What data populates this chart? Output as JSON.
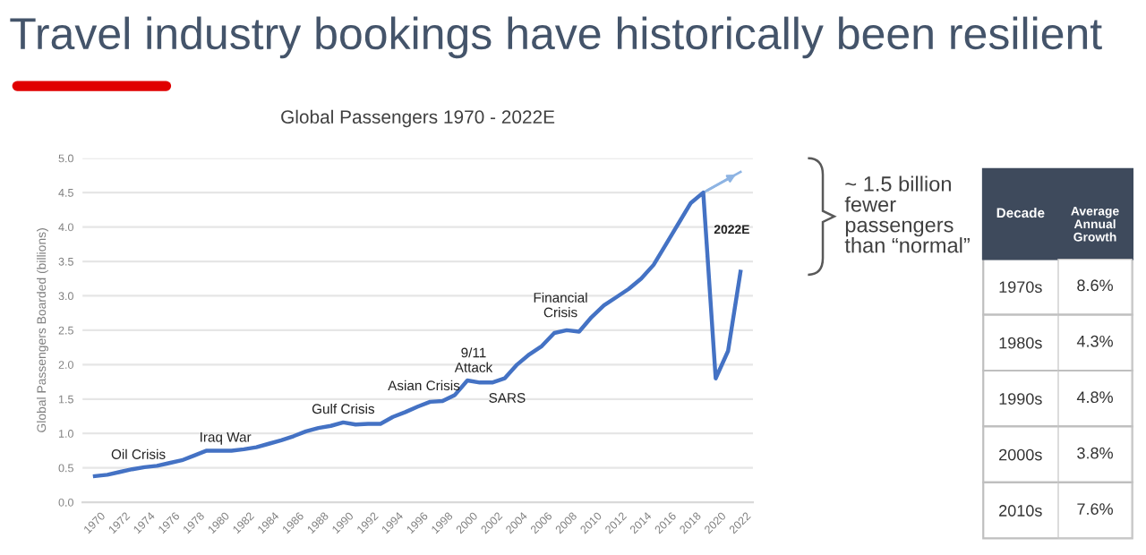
{
  "chart_data": [
    {
      "type": "line",
      "title": "Travel industry bookings have historically been resilient",
      "subtitle": "Global Passengers 1970 - 2022E",
      "ylabel": "Global Passengers Boarded (billions)",
      "x": [
        1970,
        1971,
        1972,
        1973,
        1974,
        1975,
        1976,
        1977,
        1978,
        1979,
        1980,
        1981,
        1982,
        1983,
        1984,
        1985,
        1986,
        1987,
        1988,
        1989,
        1990,
        1991,
        1992,
        1993,
        1994,
        1995,
        1996,
        1997,
        1998,
        1999,
        2000,
        2001,
        2002,
        2003,
        2004,
        2005,
        2006,
        2007,
        2008,
        2009,
        2010,
        2011,
        2012,
        2013,
        2014,
        2015,
        2016,
        2017,
        2018,
        2019,
        2020,
        2021,
        2022
      ],
      "series": [
        {
          "type": "line",
          "color": "#4472c4",
          "values": [
            0.38,
            0.4,
            0.44,
            0.48,
            0.51,
            0.53,
            0.57,
            0.61,
            0.68,
            0.75,
            0.75,
            0.75,
            0.77,
            0.8,
            0.85,
            0.9,
            0.96,
            1.03,
            1.08,
            1.11,
            1.16,
            1.13,
            1.14,
            1.14,
            1.24,
            1.31,
            1.39,
            1.46,
            1.47,
            1.56,
            1.77,
            1.74,
            1.74,
            1.8,
            2.0,
            2.15,
            2.27,
            2.46,
            2.5,
            2.48,
            2.69,
            2.86,
            2.98,
            3.1,
            3.25,
            3.45,
            3.75,
            4.05,
            4.35,
            4.5,
            1.8,
            2.2,
            3.35
          ]
        },
        {
          "type": "line",
          "color": "#8eb4e3",
          "x": [
            2019,
            2022
          ],
          "values": [
            4.5,
            4.8
          ]
        }
      ],
      "xlim": [
        1969,
        2023
      ],
      "xticks": [
        1970,
        1972,
        1974,
        1976,
        1978,
        1980,
        1982,
        1984,
        1986,
        1988,
        1990,
        1992,
        1994,
        1996,
        1998,
        2000,
        2002,
        2004,
        2006,
        2008,
        2010,
        2012,
        2014,
        2016,
        2018,
        2020,
        2022
      ],
      "ylim": [
        0,
        5
      ],
      "yticks": [
        {
          "value": 0,
          "label": "0.0"
        },
        {
          "value": 0.5,
          "label": "0.5"
        },
        {
          "value": 1,
          "label": "1.0"
        },
        {
          "value": 1.5,
          "label": "1.5"
        },
        {
          "value": 2,
          "label": "2.0"
        },
        {
          "value": 2.5,
          "label": "2.5"
        },
        {
          "value": 3,
          "label": "3.0"
        },
        {
          "value": 3.5,
          "label": "3.5"
        },
        {
          "value": 4,
          "label": "4.0"
        },
        {
          "value": 4.5,
          "label": "4.5"
        },
        {
          "value": 5,
          "label": "5.0"
        }
      ],
      "grid": "y",
      "legend": false,
      "marker": "none",
      "line_style": "solid",
      "annotations": [
        "Oil Crisis",
        "Iraq War",
        "Gulf Crisis",
        "Asian Crisis",
        "9/11\nAttack",
        "SARS",
        "Financial\nCrisis",
        "2022E",
        "~ 1.5 billion\nfewer\npassengers\nthan “normal”"
      ]
    },
    {
      "type": "heatmap",
      "ylabel": "Decade",
      "color": "#ffffff",
      "categories": [
        "Average\nAnnual\nGrowth"
      ],
      "y_categories": [
        "1970s",
        "1980s",
        "1990s",
        "2000s",
        "2010s"
      ],
      "cells": [
        [
          null
        ],
        [
          null
        ],
        [
          null
        ],
        [
          null
        ],
        [
          null
        ]
      ],
      "cell_labels": [
        [
          "8.6%"
        ],
        [
          "4.3%"
        ],
        [
          "4.8%"
        ],
        [
          "3.8%"
        ],
        [
          "7.6%"
        ]
      ]
    }
  ]
}
